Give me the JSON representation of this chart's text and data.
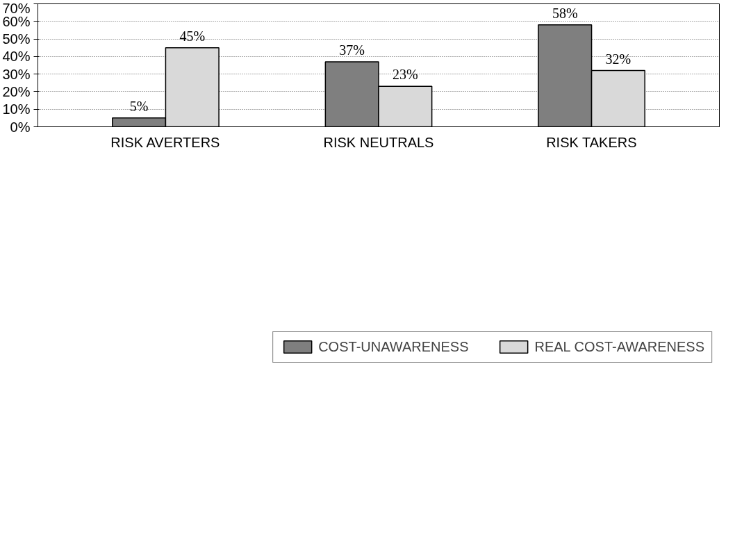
{
  "chart_data": {
    "type": "bar",
    "categories": [
      "RISK AVERTERS",
      "RISK NEUTRALS",
      "RISK TAKERS"
    ],
    "series": [
      {
        "name": "COST-UNAWARENESS",
        "color": "#7f7f7f",
        "values": [
          5,
          37,
          58
        ],
        "value_labels": [
          "5%",
          "37%",
          "58%"
        ]
      },
      {
        "name": "REAL COST-AWARENESS",
        "color": "#d9d9d9",
        "values": [
          45,
          23,
          32
        ],
        "value_labels": [
          "45%",
          "23%",
          "32%"
        ]
      }
    ],
    "ylim": [
      0,
      70
    ],
    "yticks": [
      {
        "value": 0,
        "label": "0%"
      },
      {
        "value": 10,
        "label": "10%"
      },
      {
        "value": 20,
        "label": "20%"
      },
      {
        "value": 30,
        "label": "30%"
      },
      {
        "value": 40,
        "label": "40%"
      },
      {
        "value": 50,
        "label": "50%"
      },
      {
        "value": 60,
        "label": "60%"
      },
      {
        "value": 70,
        "label": "70%"
      }
    ],
    "grid": "y",
    "legend": "bottom"
  }
}
